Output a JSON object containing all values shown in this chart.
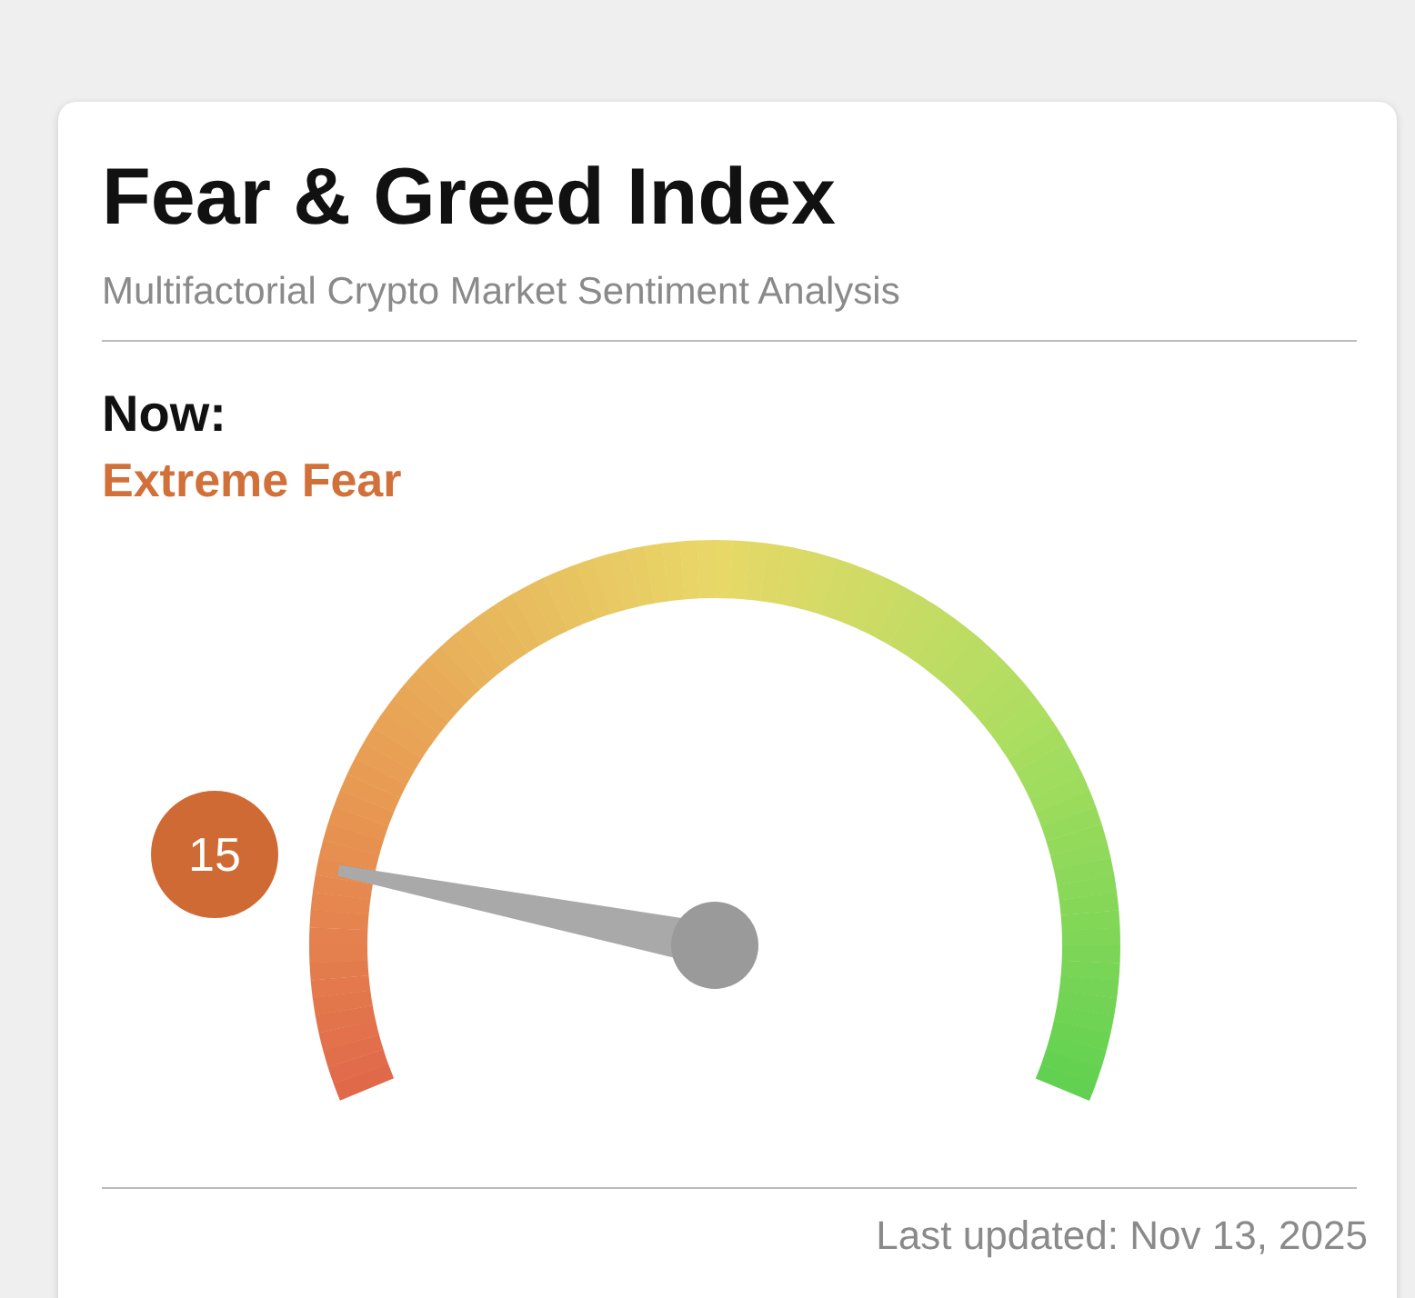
{
  "chart_data": {
    "type": "other",
    "title": "Fear & Greed Index",
    "subtitle": "Multifactorial Crypto Market Sentiment Analysis",
    "values": [
      15
    ],
    "data_labels": true,
    "annotations": [
      "Now:",
      "Extreme Fear",
      "Last updated: Nov 13, 2025"
    ]
  }
}
